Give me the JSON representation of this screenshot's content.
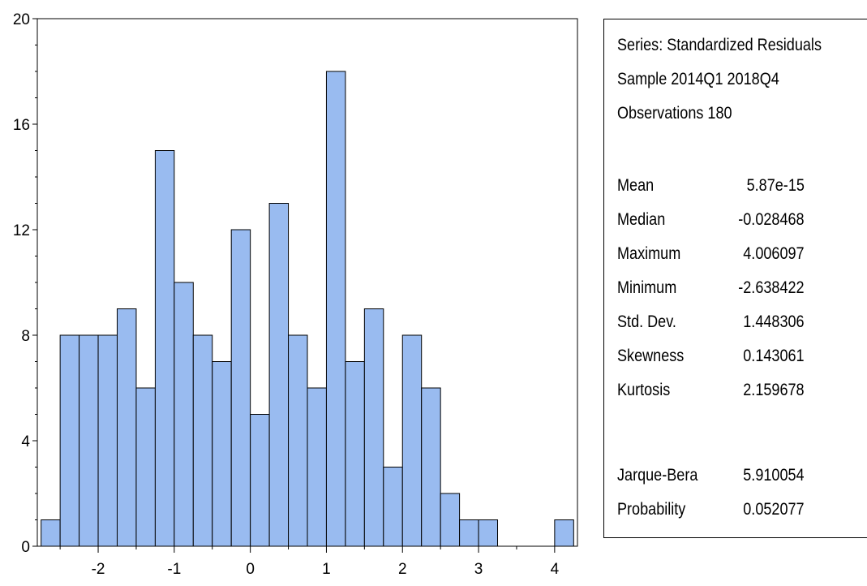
{
  "chart_data": {
    "type": "bar",
    "bin_width": 0.25,
    "bins": [
      {
        "start": -2.75,
        "count": 1
      },
      {
        "start": -2.5,
        "count": 8
      },
      {
        "start": -2.25,
        "count": 8
      },
      {
        "start": -2.0,
        "count": 8
      },
      {
        "start": -1.75,
        "count": 9
      },
      {
        "start": -1.5,
        "count": 6
      },
      {
        "start": -1.25,
        "count": 15
      },
      {
        "start": -1.0,
        "count": 10
      },
      {
        "start": -0.75,
        "count": 8
      },
      {
        "start": -0.5,
        "count": 7
      },
      {
        "start": -0.25,
        "count": 12
      },
      {
        "start": 0.0,
        "count": 5
      },
      {
        "start": 0.25,
        "count": 13
      },
      {
        "start": 0.5,
        "count": 8
      },
      {
        "start": 0.75,
        "count": 6
      },
      {
        "start": 1.0,
        "count": 18
      },
      {
        "start": 1.25,
        "count": 7
      },
      {
        "start": 1.5,
        "count": 9
      },
      {
        "start": 1.75,
        "count": 3
      },
      {
        "start": 2.0,
        "count": 8
      },
      {
        "start": 2.25,
        "count": 6
      },
      {
        "start": 2.5,
        "count": 2
      },
      {
        "start": 2.75,
        "count": 1
      },
      {
        "start": 3.0,
        "count": 1
      },
      {
        "start": 4.0,
        "count": 1
      }
    ],
    "xlim": [
      -2.8,
      4.3
    ],
    "ylim": [
      0,
      20
    ],
    "x_ticks": [
      -2,
      -1,
      0,
      1,
      2,
      3,
      4
    ],
    "y_ticks": [
      0,
      4,
      8,
      12,
      16,
      20
    ],
    "bar_color": "#99bbf0",
    "grid": false
  },
  "summary": {
    "series_label": "Series: Standardized Residuals",
    "sample_label": "Sample 2014Q1 2018Q4",
    "observations_label": "Observations 180",
    "stats": [
      {
        "label": "Mean",
        "value": "5.87e-15"
      },
      {
        "label": "Median",
        "value": "-0.028468"
      },
      {
        "label": "Maximum",
        "value": "4.006097"
      },
      {
        "label": "Minimum",
        "value": "-2.638422"
      },
      {
        "label": "Std. Dev.",
        "value": "1.448306"
      },
      {
        "label": "Skewness",
        "value": "0.143061"
      },
      {
        "label": "Kurtosis",
        "value": "2.159678"
      }
    ],
    "tests": [
      {
        "label": "Jarque-Bera",
        "value": "5.910054"
      },
      {
        "label": "Probability",
        "value": "0.052077"
      }
    ]
  }
}
